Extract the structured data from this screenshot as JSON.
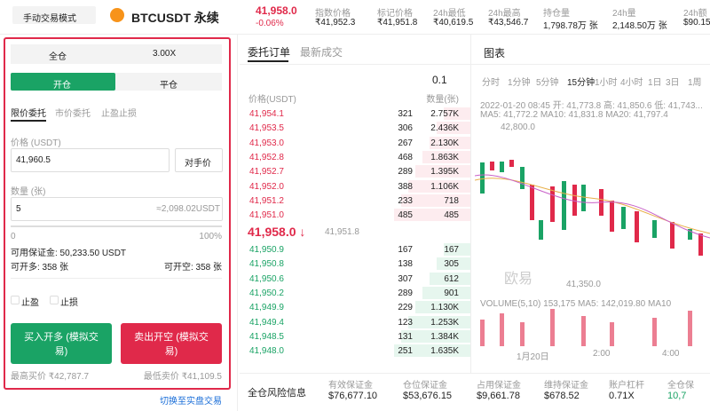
{
  "header": {
    "mode": "手动交易模式",
    "symbol": "BTCUSDT 永续",
    "price": "41,958.0",
    "change": "-0.06%",
    "stats": [
      {
        "label": "指数价格",
        "value": "₹41,952.3"
      },
      {
        "label": "标记价格",
        "value": "₹41,951.8"
      },
      {
        "label": "24h最低",
        "value": "₹40,619.5"
      },
      {
        "label": "24h最高",
        "value": "₹43,546.7"
      },
      {
        "label": "持仓量",
        "value": "1,798.78万 张"
      },
      {
        "label": "24h量",
        "value": "2,148.50万 张"
      },
      {
        "label": "24h额",
        "value": "$90.15"
      }
    ]
  },
  "order_form": {
    "margin_mode": "全仓",
    "leverage": "3.00X",
    "tabs": [
      "开仓",
      "平仓"
    ],
    "order_types": [
      "限价委托",
      "市价委托",
      "止盈止损"
    ],
    "price_label": "价格 (USDT)",
    "price": "41,960.5",
    "counter_price": "对手价",
    "amount_label": "数量 (张)",
    "amount": "5",
    "amount_usdt": "≈2,098.02USDT",
    "slider_min": "0",
    "slider_max": "100%",
    "available": "可用保证金: 50,233.50 USDT",
    "can_long": "可开多: 358 张",
    "can_short": "可开空: 358 张",
    "take_profit": "止盈",
    "stop_loss": "止损",
    "buy": "买入开多 (模拟交易)",
    "sell": "卖出开空 (模拟交易)",
    "max_buy": "最高买价 ₹42,787.7",
    "min_sell": "最低卖价 ₹41,109.5",
    "switch": "切换至实盘交易"
  },
  "order_book": {
    "tabs": [
      "委托订单",
      "最新成交"
    ],
    "precision": "0.1",
    "headers": [
      "价格(USDT)",
      "数量(张)"
    ],
    "asks": [
      [
        "41,954.1",
        "321",
        "2.757K"
      ],
      [
        "41,953.5",
        "306",
        "2.436K"
      ],
      [
        "41,953.0",
        "267",
        "2.130K"
      ],
      [
        "41,952.8",
        "468",
        "1.863K"
      ],
      [
        "41,952.7",
        "289",
        "1.395K"
      ],
      [
        "41,952.0",
        "388",
        "1.106K"
      ],
      [
        "41,951.2",
        "233",
        "718"
      ],
      [
        "41,951.0",
        "485",
        "485"
      ]
    ],
    "last_price": "41,958.0 ↓",
    "mark_price": "41,951.8",
    "bids": [
      [
        "41,950.9",
        "167",
        "167"
      ],
      [
        "41,950.8",
        "138",
        "305"
      ],
      [
        "41,950.6",
        "307",
        "612"
      ],
      [
        "41,950.2",
        "289",
        "901"
      ],
      [
        "41,949.9",
        "229",
        "1.130K"
      ],
      [
        "41,949.4",
        "123",
        "1.253K"
      ],
      [
        "41,948.5",
        "131",
        "1.384K"
      ],
      [
        "41,948.0",
        "251",
        "1.635K"
      ]
    ]
  },
  "chart_panel": {
    "title": "图表",
    "intervals": [
      "分时",
      "1分钟",
      "5分钟",
      "15分钟",
      "1小时",
      "4小时",
      "1日",
      "3日",
      "1周"
    ],
    "info": "2022-01-20 08:45 开: 41,773.8 高: 41,850.6 低: 41,743...",
    "ma": "MA5: 41,772.2 MA10: 41,831.8 MA20: 41,797.4",
    "high_label": "42,800.0",
    "low_label": "41,350.0",
    "watermark": "欧易",
    "volume": "VOLUME(5,10) 153,175 MA5: 142,019.80 MA10",
    "x_labels": [
      "1月20日",
      "2:00",
      "4:00"
    ]
  },
  "risk": {
    "title": "全仓风险信息",
    "items": [
      {
        "label": "有效保证金",
        "value": "$76,677.10"
      },
      {
        "label": "仓位保证金",
        "value": "$53,676.15"
      },
      {
        "label": "占用保证金",
        "value": "$9,661.78"
      },
      {
        "label": "维持保证金",
        "value": "$678.52"
      },
      {
        "label": "账户杠杆",
        "value": "0.71X"
      },
      {
        "label": "全仓保",
        "value": "10,7"
      }
    ]
  }
}
